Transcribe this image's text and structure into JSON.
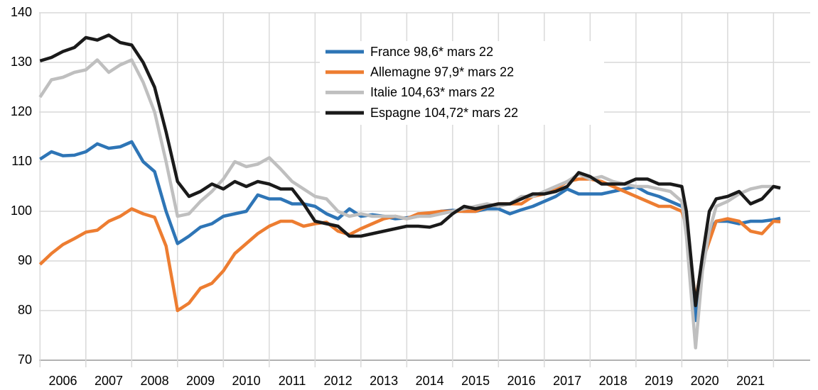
{
  "chart_data": {
    "type": "line",
    "x": [
      2006,
      2006.25,
      2006.5,
      2006.75,
      2007,
      2007.25,
      2007.5,
      2007.75,
      2008,
      2008.25,
      2008.5,
      2008.75,
      2009,
      2009.25,
      2009.5,
      2009.75,
      2010,
      2010.25,
      2010.5,
      2010.75,
      2011,
      2011.25,
      2011.5,
      2011.75,
      2012,
      2012.25,
      2012.5,
      2012.75,
      2013,
      2013.25,
      2013.5,
      2013.75,
      2014,
      2014.25,
      2014.5,
      2014.75,
      2015,
      2015.25,
      2015.5,
      2015.75,
      2016,
      2016.25,
      2016.5,
      2016.75,
      2017,
      2017.25,
      2017.5,
      2017.75,
      2018,
      2018.25,
      2018.5,
      2018.75,
      2019,
      2019.25,
      2019.5,
      2019.75,
      2020,
      2020.1,
      2020.3,
      2020.45,
      2020.6,
      2020.75,
      2021,
      2021.25,
      2021.5,
      2021.75,
      2022,
      2022.15
    ],
    "series": [
      {
        "name": "France 98,6* mars 22",
        "color": "#2e75b6",
        "values": [
          110.5,
          112,
          111.2,
          111.3,
          112,
          113.6,
          112.7,
          113,
          114,
          110,
          108,
          100,
          93.5,
          95,
          96.8,
          97.5,
          99,
          99.5,
          100,
          103.3,
          102.5,
          102.5,
          101.5,
          101.5,
          101,
          99.5,
          98.5,
          100.5,
          99,
          99.3,
          99,
          98.5,
          98.7,
          99,
          99.5,
          100,
          100.2,
          100,
          100,
          100.5,
          100.5,
          99.5,
          100.3,
          101,
          102,
          103,
          104.5,
          103.5,
          103.5,
          103.5,
          104,
          104.5,
          105,
          103.7,
          103,
          102,
          101,
          99,
          78,
          90,
          96,
          98,
          98,
          97.5,
          98,
          98,
          98.3,
          98.6
        ]
      },
      {
        "name": "Allemagne 97,9* mars 22",
        "color": "#ed7d31",
        "values": [
          89.3,
          91.5,
          93.3,
          94.5,
          95.8,
          96.2,
          98,
          99,
          100.5,
          99.5,
          98.8,
          93,
          80,
          81.5,
          84.5,
          85.5,
          88,
          91.5,
          93.5,
          95.5,
          97,
          98,
          98,
          97,
          97.5,
          97.8,
          96,
          95.3,
          96.5,
          97.5,
          98.5,
          99,
          98.5,
          99.5,
          99.7,
          100,
          100,
          100,
          100,
          101,
          101.5,
          101.5,
          101.5,
          103,
          103.5,
          104.5,
          106,
          106.5,
          106.5,
          106,
          105,
          104,
          103,
          102,
          101,
          101,
          100,
          97,
          82,
          90,
          94,
          98,
          98.5,
          98,
          96,
          95.5,
          98,
          97.9
        ]
      },
      {
        "name": "Italie 104,63* mars 22",
        "color": "#bfbfbf",
        "values": [
          123,
          126.5,
          127,
          128,
          128.5,
          130.5,
          128,
          129.5,
          130.5,
          126,
          120,
          110,
          99,
          99.5,
          102,
          104,
          106.5,
          110,
          109,
          109.5,
          110.8,
          108.5,
          106,
          104.5,
          103,
          102.5,
          100,
          99,
          99.5,
          99,
          99,
          99,
          98.5,
          99,
          99,
          99.5,
          100,
          100.5,
          101,
          101.5,
          101,
          101.5,
          103,
          103,
          104,
          105,
          106,
          107.5,
          106.5,
          107,
          106,
          105.5,
          105,
          105,
          104.5,
          104,
          102,
          95,
          72.5,
          88,
          96,
          101,
          102,
          103.5,
          104.5,
          105,
          105,
          104.6
        ]
      },
      {
        "name": "Espagne 104,72* mars 22",
        "color": "#1a1a1a",
        "values": [
          130.3,
          131,
          132.2,
          133,
          135,
          134.5,
          135.5,
          134,
          133.5,
          130,
          125,
          116,
          106,
          103,
          104,
          105.5,
          104.5,
          106,
          105,
          106,
          105.5,
          104.5,
          104.5,
          101.5,
          98,
          97.5,
          97,
          95,
          95,
          95.5,
          96,
          96.5,
          97,
          97,
          96.8,
          97.5,
          99.5,
          101,
          100.5,
          101,
          101.5,
          101.5,
          102.5,
          103.5,
          103.5,
          104,
          105,
          107.8,
          107,
          105.5,
          105.5,
          105.5,
          106.5,
          106.5,
          105.5,
          105.5,
          105,
          100,
          81,
          91,
          100,
          102.5,
          103,
          104,
          101.5,
          102.5,
          105,
          104.7
        ]
      }
    ],
    "xlim": [
      2005.98,
      2022.8
    ],
    "xticks": [
      {
        "value": 2006.5,
        "label": "2006"
      },
      {
        "value": 2007.5,
        "label": "2007"
      },
      {
        "value": 2008.5,
        "label": "2008"
      },
      {
        "value": 2009.5,
        "label": "2009"
      },
      {
        "value": 2010.5,
        "label": "2010"
      },
      {
        "value": 2011.5,
        "label": "2011"
      },
      {
        "value": 2012.5,
        "label": "2012"
      },
      {
        "value": 2013.5,
        "label": "2013"
      },
      {
        "value": 2014.5,
        "label": "2014"
      },
      {
        "value": 2015.5,
        "label": "2015"
      },
      {
        "value": 2016.5,
        "label": "2016"
      },
      {
        "value": 2017.5,
        "label": "2017"
      },
      {
        "value": 2018.5,
        "label": "2018"
      },
      {
        "value": 2019.5,
        "label": "2019"
      },
      {
        "value": 2020.5,
        "label": "2020"
      },
      {
        "value": 2021.5,
        "label": "2021"
      }
    ],
    "ylim": [
      70,
      140
    ],
    "yticks": [
      70,
      80,
      90,
      100,
      110,
      120,
      130,
      140
    ],
    "grid": true
  }
}
